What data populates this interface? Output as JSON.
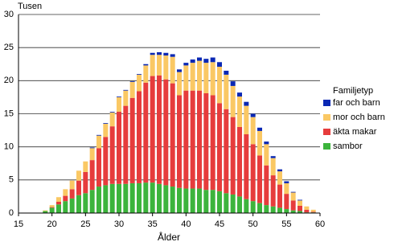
{
  "chart_data": {
    "type": "stacked_bar",
    "y_axis_label": "Tusen",
    "x_axis_label": "Ålder",
    "legend_title": "Familjetyp",
    "x": [
      19,
      20,
      21,
      22,
      23,
      24,
      25,
      26,
      27,
      28,
      29,
      30,
      31,
      32,
      33,
      34,
      35,
      36,
      37,
      38,
      39,
      40,
      41,
      42,
      43,
      44,
      45,
      46,
      47,
      48,
      49,
      50,
      51,
      52,
      53,
      54,
      55,
      56,
      57,
      58,
      59
    ],
    "series": [
      {
        "name": "sambor",
        "color": "#3cb43c",
        "values": [
          0.3,
          0.8,
          1.3,
          1.8,
          2.2,
          2.7,
          3.0,
          3.5,
          4.0,
          4.2,
          4.4,
          4.4,
          4.4,
          4.5,
          4.5,
          4.6,
          4.6,
          4.4,
          4.2,
          4.0,
          3.8,
          3.7,
          3.7,
          3.7,
          3.5,
          3.5,
          3.3,
          3.0,
          2.8,
          2.5,
          2.1,
          1.8,
          1.5,
          1.2,
          1.0,
          0.8,
          0.6,
          0.4,
          0.3,
          0.1,
          0.1
        ]
      },
      {
        "name": "äkta makar",
        "color": "#e63c3c",
        "values": [
          0,
          0.1,
          0.4,
          0.8,
          1.4,
          2.2,
          3.2,
          4.5,
          5.8,
          7.3,
          8.7,
          10.9,
          11.8,
          12.9,
          13.9,
          15.1,
          16.1,
          16.4,
          16.0,
          15.6,
          14.0,
          14.8,
          14.8,
          14.8,
          14.6,
          14.3,
          13.3,
          12.7,
          11.7,
          10.5,
          9.8,
          8.6,
          7.2,
          6.0,
          4.7,
          3.5,
          2.3,
          1.5,
          0.8,
          0.4,
          0.1
        ]
      },
      {
        "name": "mor och barn",
        "color": "#fac864",
        "values": [
          0.1,
          0.3,
          0.7,
          1.0,
          1.3,
          1.5,
          1.6,
          1.8,
          1.9,
          2.0,
          2.1,
          2.2,
          2.3,
          2.4,
          2.5,
          2.6,
          3.2,
          3.1,
          3.6,
          4.0,
          3.5,
          3.8,
          4.2,
          4.5,
          4.6,
          5.0,
          5.5,
          5.2,
          4.7,
          4.6,
          4.3,
          4.1,
          3.7,
          3.2,
          2.6,
          2.0,
          1.6,
          1.2,
          0.8,
          0.5,
          0.3
        ]
      },
      {
        "name": "far och barn",
        "color": "#0a28b4",
        "values": [
          0,
          0,
          0,
          0,
          0,
          0,
          0,
          0.1,
          0.1,
          0.1,
          0.1,
          0.1,
          0.1,
          0.1,
          0.1,
          0.2,
          0.3,
          0.4,
          0.4,
          0.4,
          0.4,
          0.4,
          0.5,
          0.5,
          0.6,
          0.7,
          0.7,
          0.6,
          0.7,
          0.6,
          0.6,
          0.5,
          0.5,
          0.4,
          0.3,
          0.3,
          0.3,
          0.1,
          0.1,
          0,
          0
        ]
      }
    ],
    "xlim": [
      15,
      60
    ],
    "xticks": [
      15,
      20,
      25,
      30,
      35,
      40,
      45,
      50,
      55,
      60
    ],
    "ylim": [
      0,
      30
    ],
    "yticks": [
      0,
      5,
      10,
      15,
      20,
      25,
      30
    ],
    "grid": true,
    "legend": "right"
  }
}
